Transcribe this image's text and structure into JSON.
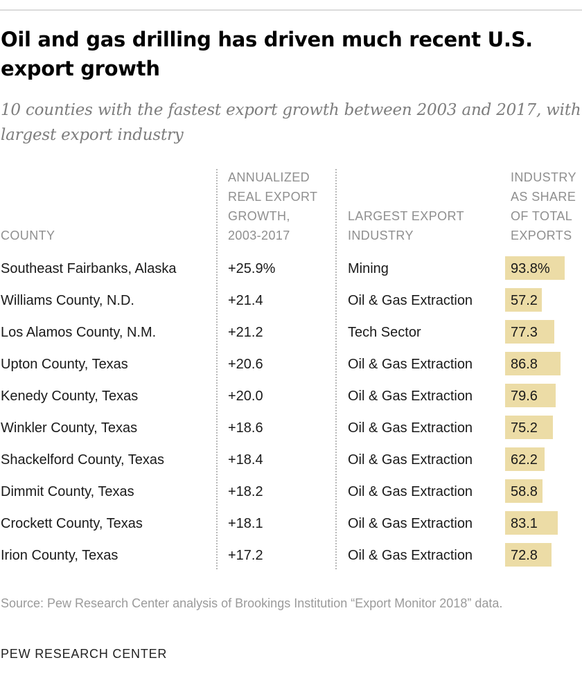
{
  "title": "Oil and gas drilling has driven much recent U.S. export growth",
  "subtitle": "10 counties with the fastest export growth between 2003 and 2017, with largest export industry",
  "columns": {
    "county": "COUNTY",
    "growth": "ANNUALIZED\nREAL EXPORT\nGROWTH,\n2003-2017",
    "industry": "LARGEST EXPORT\nINDUSTRY",
    "share": "INDUSTRY\nAS SHARE\nOF TOTAL\nEXPORTS"
  },
  "chart_data": {
    "type": "table",
    "title": "Oil and gas drilling has driven much recent U.S. export growth",
    "subtitle": "10 counties with the fastest export growth between 2003 and 2017, with largest export industry",
    "columns": [
      "COUNTY",
      "ANNUALIZED REAL EXPORT GROWTH, 2003-2017",
      "LARGEST EXPORT INDUSTRY",
      "INDUSTRY AS SHARE OF TOTAL EXPORTS"
    ],
    "share_max": 100,
    "bar_color": "#ecdca6",
    "rows": [
      {
        "county": "Southeast Fairbanks, Alaska",
        "growth": "+25.9%",
        "industry": "Mining",
        "share": 93.8,
        "share_label": "93.8%"
      },
      {
        "county": "Williams County, N.D.",
        "growth": "+21.4",
        "industry": "Oil & Gas Extraction",
        "share": 57.2,
        "share_label": "57.2"
      },
      {
        "county": "Los Alamos County, N.M.",
        "growth": "+21.2",
        "industry": "Tech Sector",
        "share": 77.3,
        "share_label": "77.3"
      },
      {
        "county": "Upton County, Texas",
        "growth": "+20.6",
        "industry": "Oil & Gas Extraction",
        "share": 86.8,
        "share_label": "86.8"
      },
      {
        "county": "Kenedy County, Texas",
        "growth": "+20.0",
        "industry": "Oil & Gas Extraction",
        "share": 79.6,
        "share_label": "79.6"
      },
      {
        "county": "Winkler County, Texas",
        "growth": "+18.6",
        "industry": "Oil & Gas Extraction",
        "share": 75.2,
        "share_label": "75.2"
      },
      {
        "county": "Shackelford County, Texas",
        "growth": "+18.4",
        "industry": "Oil & Gas Extraction",
        "share": 62.2,
        "share_label": "62.2"
      },
      {
        "county": "Dimmit County, Texas",
        "growth": "+18.2",
        "industry": "Oil & Gas Extraction",
        "share": 58.8,
        "share_label": "58.8"
      },
      {
        "county": "Crockett County, Texas",
        "growth": "+18.1",
        "industry": "Oil & Gas Extraction",
        "share": 83.1,
        "share_label": "83.1"
      },
      {
        "county": "Irion County, Texas",
        "growth": "+17.2",
        "industry": "Oil & Gas Extraction",
        "share": 72.8,
        "share_label": "72.8"
      }
    ]
  },
  "source": "Source: Pew Research Center analysis of Brookings Institution “Export Monitor 2018” data.",
  "credit": "PEW RESEARCH CENTER"
}
